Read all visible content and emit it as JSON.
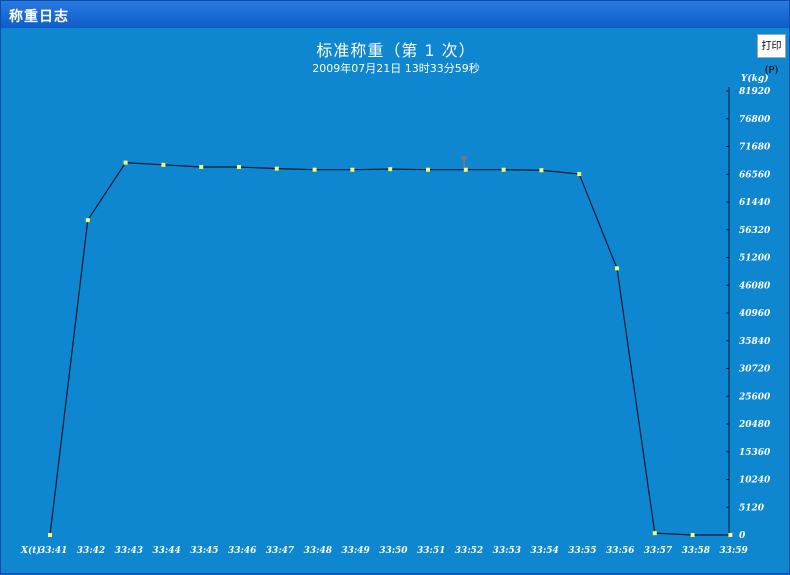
{
  "window": {
    "title": "称重日志"
  },
  "toolbar": {
    "print_label": "打印(P)"
  },
  "chart_data": {
    "type": "line",
    "title": "标准称重（第 1 次）",
    "subtitle": "2009年07月21日 13时33分59秒",
    "xlabel": "X(t)",
    "ylabel": "Y(kg)",
    "ylim": [
      0,
      81920
    ],
    "yticks": [
      0,
      5120,
      10240,
      15360,
      20480,
      25600,
      30720,
      35840,
      40960,
      46080,
      51200,
      56320,
      61440,
      66560,
      71680,
      76800,
      81920
    ],
    "categories": [
      "33:41",
      "33:42",
      "33:43",
      "33:44",
      "33:45",
      "33:46",
      "33:47",
      "33:48",
      "33:49",
      "33:50",
      "33:51",
      "33:52",
      "33:53",
      "33:54",
      "33:55",
      "33:56",
      "33:57",
      "33:58",
      "33:59"
    ],
    "values": [
      0,
      58100,
      68700,
      68300,
      67900,
      67900,
      67600,
      67400,
      67400,
      67500,
      67400,
      67400,
      67400,
      67300,
      66600,
      49200,
      340,
      0,
      0
    ],
    "marker_color": "#ffff66",
    "line_color": "#0a1a30"
  }
}
